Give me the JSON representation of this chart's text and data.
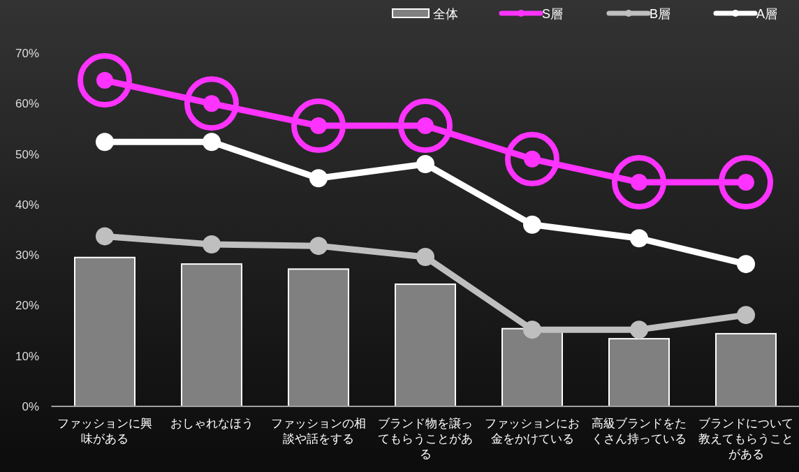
{
  "chart_data": {
    "type": "bar",
    "categories": [
      "ファッションに興味がある",
      "おしゃれなほう",
      "ファッションの相談や話をする",
      "ブランド物を譲ってもらうことがある",
      "ファッションにお金をかけている",
      "高級ブランドをたくさん持っている",
      "ブランドについて教えてもらうことがある"
    ],
    "series": [
      {
        "name": "全体",
        "color": "#808080",
        "values": [
          29.5,
          28.2,
          27.2,
          24.2,
          15.4,
          13.4,
          14.4
        ]
      },
      {
        "name": "S層",
        "type": "line",
        "color": "#ff33ff",
        "values": [
          64.6,
          60.0,
          55.6,
          55.6,
          49.0,
          44.4,
          44.4
        ]
      },
      {
        "name": "B層",
        "type": "line",
        "color": "#bfbfbf",
        "values": [
          33.7,
          32.1,
          31.8,
          29.6,
          15.2,
          15.2,
          18.1
        ]
      },
      {
        "name": "A層",
        "type": "line",
        "color": "#ffffff",
        "values": [
          52.4,
          52.4,
          45.2,
          48.0,
          36.0,
          33.3,
          28.2
        ]
      }
    ],
    "ylim": [
      0,
      70
    ],
    "yticks": [
      {
        "value": 0,
        "label": "0%"
      },
      {
        "value": 10,
        "label": "10%"
      },
      {
        "value": 20,
        "label": "20%"
      },
      {
        "value": 30,
        "label": "30%"
      },
      {
        "value": 40,
        "label": "40%"
      },
      {
        "value": 50,
        "label": "50%"
      },
      {
        "value": 60,
        "label": "60%"
      },
      {
        "value": 70,
        "label": "70%"
      }
    ],
    "legend": "top right",
    "marker": "circle"
  }
}
